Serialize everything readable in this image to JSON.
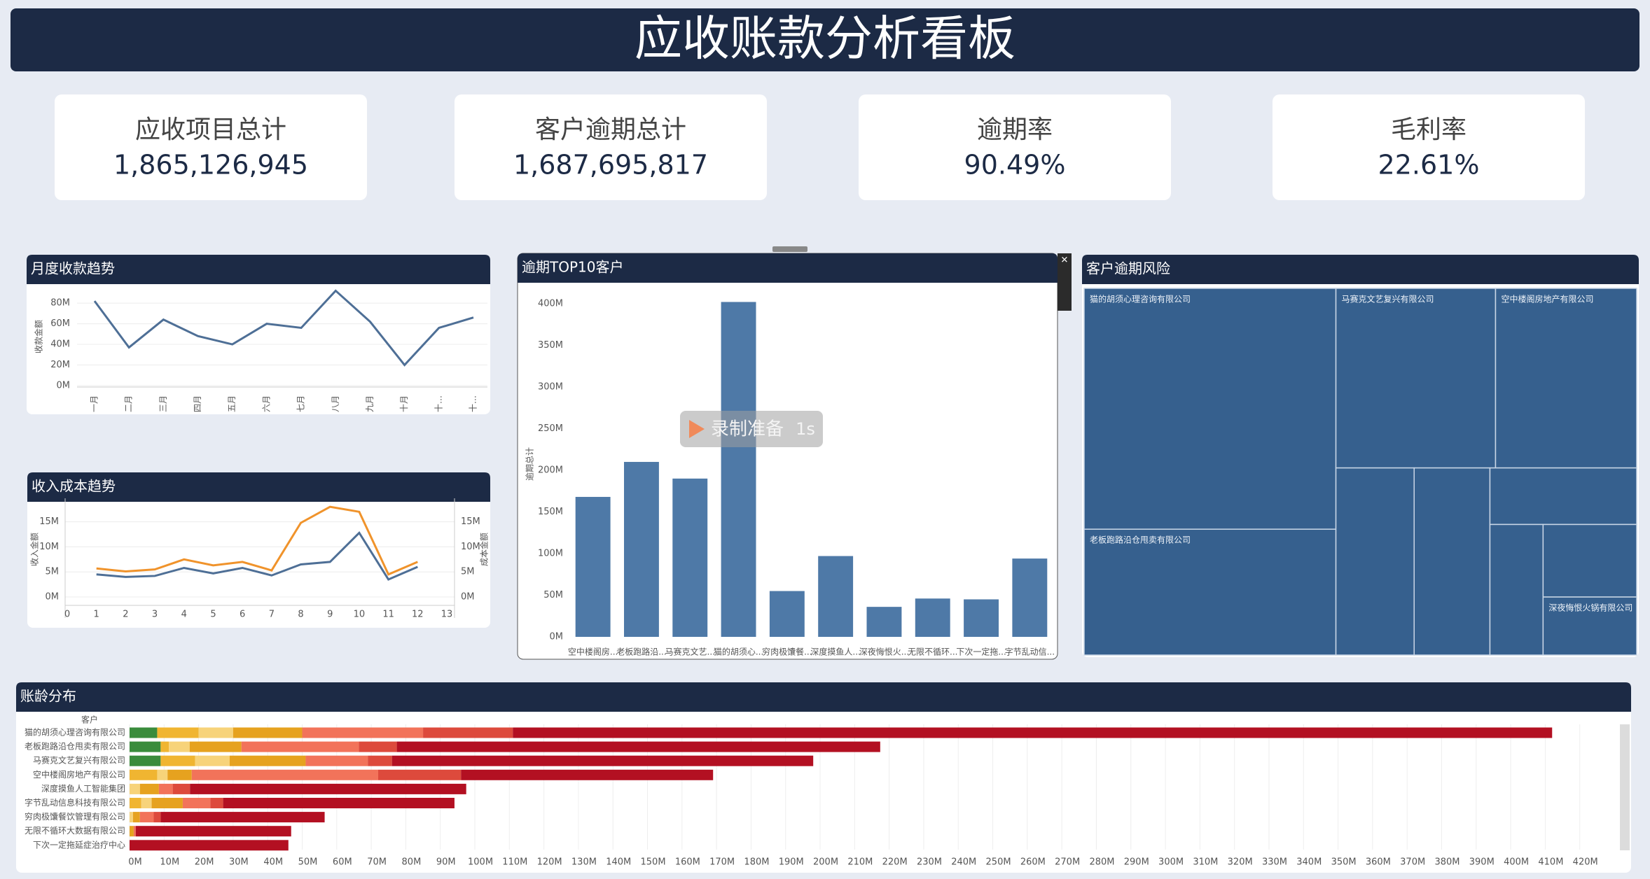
{
  "header": {
    "title": "应收账款分析看板"
  },
  "kpis": [
    {
      "label": "应收项目总计",
      "value": "1,865,126,945"
    },
    {
      "label": "客户逾期总计",
      "value": "1,687,695,817"
    },
    {
      "label": "逾期率",
      "value": "90.49%"
    },
    {
      "label": "毛利率",
      "value": "22.61%"
    }
  ],
  "overlay": {
    "label": "录制准备",
    "timer": "1s"
  },
  "chart_data": [
    {
      "type": "line",
      "title": "月度收款趋势",
      "ylabel": "收款金额",
      "categories": [
        "一月",
        "二月",
        "三月",
        "四月",
        "五月",
        "六月",
        "七月",
        "八月",
        "九月",
        "十月",
        "十…",
        "十…"
      ],
      "values": [
        82000000,
        37000000,
        64000000,
        48000000,
        40000000,
        60000000,
        56000000,
        92000000,
        62000000,
        20000000,
        56000000,
        66000000
      ],
      "color": "#4e6f96",
      "ylim": [
        0,
        95000000
      ],
      "yticks": [
        {
          "value": 0,
          "label": "0M"
        },
        {
          "value": 20000000,
          "label": "20M"
        },
        {
          "value": 40000000,
          "label": "40M"
        },
        {
          "value": 60000000,
          "label": "60M"
        },
        {
          "value": 80000000,
          "label": "80M"
        }
      ],
      "grid": true
    },
    {
      "type": "line",
      "title": "收入成本趋势",
      "ylabel": "收入金额",
      "y2label": "成本金额",
      "x": [
        1,
        2,
        3,
        4,
        5,
        6,
        7,
        8,
        9,
        10,
        11,
        12
      ],
      "series": [
        {
          "color": "#4e6f96",
          "values": [
            4500000,
            4000000,
            4200000,
            5800000,
            4700000,
            5800000,
            4300000,
            6500000,
            7000000,
            12800000,
            3500000,
            6000000
          ]
        },
        {
          "color": "#f0932b",
          "axis": "y2",
          "values": [
            5700000,
            5100000,
            5500000,
            7500000,
            6300000,
            7000000,
            5300000,
            14800000,
            18000000,
            17000000,
            4500000,
            7000000
          ]
        }
      ],
      "xlim": [
        0,
        13
      ],
      "xticks": [
        0,
        1,
        2,
        3,
        4,
        5,
        6,
        7,
        8,
        9,
        10,
        11,
        12,
        13
      ],
      "ylim": [
        0,
        19000000
      ],
      "yticks": [
        {
          "value": 0,
          "label": "0M"
        },
        {
          "value": 5000000,
          "label": "5M"
        },
        {
          "value": 10000000,
          "label": "10M"
        },
        {
          "value": 15000000,
          "label": "15M"
        }
      ],
      "y2lim": [
        0,
        19000000
      ],
      "y2ticks": [
        {
          "value": 0,
          "label": "0M"
        },
        {
          "value": 5000000,
          "label": "5M"
        },
        {
          "value": 10000000,
          "label": "10M"
        },
        {
          "value": 15000000,
          "label": "15M"
        }
      ],
      "grid": true
    },
    {
      "type": "bar",
      "title": "逾期TOP10客户",
      "ylabel": "逾期总计",
      "categories": [
        "空中楼阁房...",
        "老板跑路沿...",
        "马赛克文艺...",
        "猫的胡须心...",
        "穷肉极馕餐...",
        "深度摸鱼人...",
        "深夜悔恨火...",
        "无限不循环...",
        "下次一定拖...",
        "字节乱动信..."
      ],
      "values": [
        168000000,
        210000000,
        190000000,
        402000000,
        55000000,
        97000000,
        36000000,
        46000000,
        45000000,
        94000000
      ],
      "color": "#4e79a7",
      "ylim": [
        0,
        415000000
      ],
      "yticks": [
        {
          "value": 0,
          "label": "0M"
        },
        {
          "value": 50000000,
          "label": "50M"
        },
        {
          "value": 100000000,
          "label": "100M"
        },
        {
          "value": 150000000,
          "label": "150M"
        },
        {
          "value": 200000000,
          "label": "200M"
        },
        {
          "value": 250000000,
          "label": "250M"
        },
        {
          "value": 300000000,
          "label": "300M"
        },
        {
          "value": 350000000,
          "label": "350M"
        },
        {
          "value": 400000000,
          "label": "400M"
        }
      ],
      "grid": false
    },
    {
      "type": "treemap",
      "title": "客户逾期风险",
      "categories": [
        "猫的胡须心理咨询有限公司",
        "老板跑路沿仓甩卖有限公司",
        "马赛克文艺复兴有限公司",
        "空中楼阁房地产有限公司",
        null,
        null,
        null,
        null,
        null,
        "深夜悔恨火锅有限公司"
      ],
      "values": [
        402000000,
        210000000,
        190000000,
        168000000,
        97000000,
        94000000,
        55000000,
        46000000,
        45000000,
        36000000
      ],
      "color": "#36608e"
    },
    {
      "type": "bar",
      "horizontal": true,
      "stacked": true,
      "title": "账龄分布",
      "y_header": "客户",
      "categories": [
        "猫的胡须心理咨询有限公司",
        "老板跑路沿仓甩卖有限公司",
        "马赛克文艺复兴有限公司",
        "空中楼阁房地产有限公司",
        "深度摸鱼人工智能集团",
        "字节乱动信息科技有限公司",
        "穷肉极馕餐饮管理有限公司",
        "无限不循环大数据有限公司",
        "下次一定拖延症治疗中心"
      ],
      "series": [
        {
          "color": "#3a8c3c",
          "values": [
            8000000,
            9000000,
            9000000,
            0,
            0,
            0,
            0,
            0,
            0
          ]
        },
        {
          "color": "#f0b531",
          "values": [
            12000000,
            2400000,
            10000000,
            8000000,
            0,
            3400000,
            0,
            0,
            0
          ]
        },
        {
          "color": "#f7d37a",
          "values": [
            10000000,
            6000000,
            10000000,
            3000000,
            3000000,
            3000000,
            1000000,
            0,
            0
          ]
        },
        {
          "color": "#e6a21f",
          "values": [
            20000000,
            15000000,
            22000000,
            7000000,
            5500000,
            9000000,
            2000000,
            1200000,
            0
          ]
        },
        {
          "color": "#f2735a",
          "values": [
            35000000,
            34000000,
            18000000,
            54000000,
            4000000,
            8000000,
            4000000,
            600000,
            0
          ]
        },
        {
          "color": "#dd4a3c",
          "values": [
            26000000,
            11000000,
            7000000,
            24000000,
            5000000,
            3700000,
            2000000,
            0,
            0
          ]
        },
        {
          "color": "#b31022",
          "values": [
            301000000,
            140000000,
            122000000,
            73000000,
            80000000,
            67000000,
            47500000,
            45000000,
            46000000
          ]
        }
      ],
      "xlim": [
        0,
        430000000
      ],
      "xticks": [
        {
          "value": 0,
          "label": "0M"
        },
        {
          "value": 10000000,
          "label": "10M"
        },
        {
          "value": 20000000,
          "label": "20M"
        },
        {
          "value": 30000000,
          "label": "30M"
        },
        {
          "value": 40000000,
          "label": "40M"
        },
        {
          "value": 50000000,
          "label": "50M"
        },
        {
          "value": 60000000,
          "label": "60M"
        },
        {
          "value": 70000000,
          "label": "70M"
        },
        {
          "value": 80000000,
          "label": "80M"
        },
        {
          "value": 90000000,
          "label": "90M"
        },
        {
          "value": 100000000,
          "label": "100M"
        },
        {
          "value": 110000000,
          "label": "110M"
        },
        {
          "value": 120000000,
          "label": "120M"
        },
        {
          "value": 130000000,
          "label": "130M"
        },
        {
          "value": 140000000,
          "label": "140M"
        },
        {
          "value": 150000000,
          "label": "150M"
        },
        {
          "value": 160000000,
          "label": "160M"
        },
        {
          "value": 170000000,
          "label": "170M"
        },
        {
          "value": 180000000,
          "label": "180M"
        },
        {
          "value": 190000000,
          "label": "190M"
        },
        {
          "value": 200000000,
          "label": "200M"
        },
        {
          "value": 210000000,
          "label": "210M"
        },
        {
          "value": 220000000,
          "label": "220M"
        },
        {
          "value": 230000000,
          "label": "230M"
        },
        {
          "value": 240000000,
          "label": "240M"
        },
        {
          "value": 250000000,
          "label": "250M"
        },
        {
          "value": 260000000,
          "label": "260M"
        },
        {
          "value": 270000000,
          "label": "270M"
        },
        {
          "value": 280000000,
          "label": "280M"
        },
        {
          "value": 290000000,
          "label": "290M"
        },
        {
          "value": 300000000,
          "label": "300M"
        },
        {
          "value": 310000000,
          "label": "310M"
        },
        {
          "value": 320000000,
          "label": "320M"
        },
        {
          "value": 330000000,
          "label": "330M"
        },
        {
          "value": 340000000,
          "label": "340M"
        },
        {
          "value": 350000000,
          "label": "350M"
        },
        {
          "value": 360000000,
          "label": "360M"
        },
        {
          "value": 370000000,
          "label": "370M"
        },
        {
          "value": 380000000,
          "label": "380M"
        },
        {
          "value": 390000000,
          "label": "390M"
        },
        {
          "value": 400000000,
          "label": "400M"
        },
        {
          "value": 410000000,
          "label": "410M"
        },
        {
          "value": 420000000,
          "label": "420M"
        }
      ],
      "grid": true
    }
  ]
}
